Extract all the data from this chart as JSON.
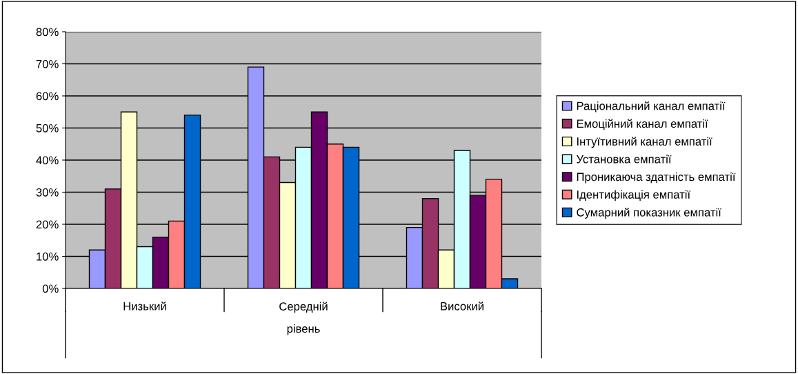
{
  "chart_data": {
    "type": "bar",
    "categories": [
      "Низький",
      "Середній",
      "Високий"
    ],
    "xlabel": "рівень",
    "series": [
      {
        "name": "Раціональний канал емпатії",
        "color": "#9999ff",
        "values": [
          12,
          69,
          19
        ]
      },
      {
        "name": "Емоційний канал емпатії",
        "color": "#993366",
        "values": [
          31,
          41,
          28
        ]
      },
      {
        "name": "Інтуїтивний канал емпатії",
        "color": "#ffffcc",
        "values": [
          55,
          33,
          12
        ]
      },
      {
        "name": "Установка емпатії",
        "color": "#ccffff",
        "values": [
          13,
          44,
          43
        ]
      },
      {
        "name": "Проникаюча здатність емпатії",
        "color": "#660066",
        "values": [
          16,
          55,
          29
        ]
      },
      {
        "name": "Ідентифікація емпатії",
        "color": "#ff8080",
        "values": [
          21,
          45,
          34
        ]
      },
      {
        "name": "Сумарний показник емпатії",
        "color": "#0066cc",
        "values": [
          54,
          44,
          3
        ]
      }
    ],
    "ylim": [
      0,
      80
    ],
    "yticks": [
      {
        "value": 0,
        "label": "0%"
      },
      {
        "value": 10,
        "label": "10%"
      },
      {
        "value": 20,
        "label": "20%"
      },
      {
        "value": 30,
        "label": "30%"
      },
      {
        "value": 40,
        "label": "40%"
      },
      {
        "value": 50,
        "label": "50%"
      },
      {
        "value": 60,
        "label": "60%"
      },
      {
        "value": 70,
        "label": "70%"
      },
      {
        "value": 80,
        "label": "80%"
      }
    ],
    "grid": "y",
    "legend": "right"
  }
}
